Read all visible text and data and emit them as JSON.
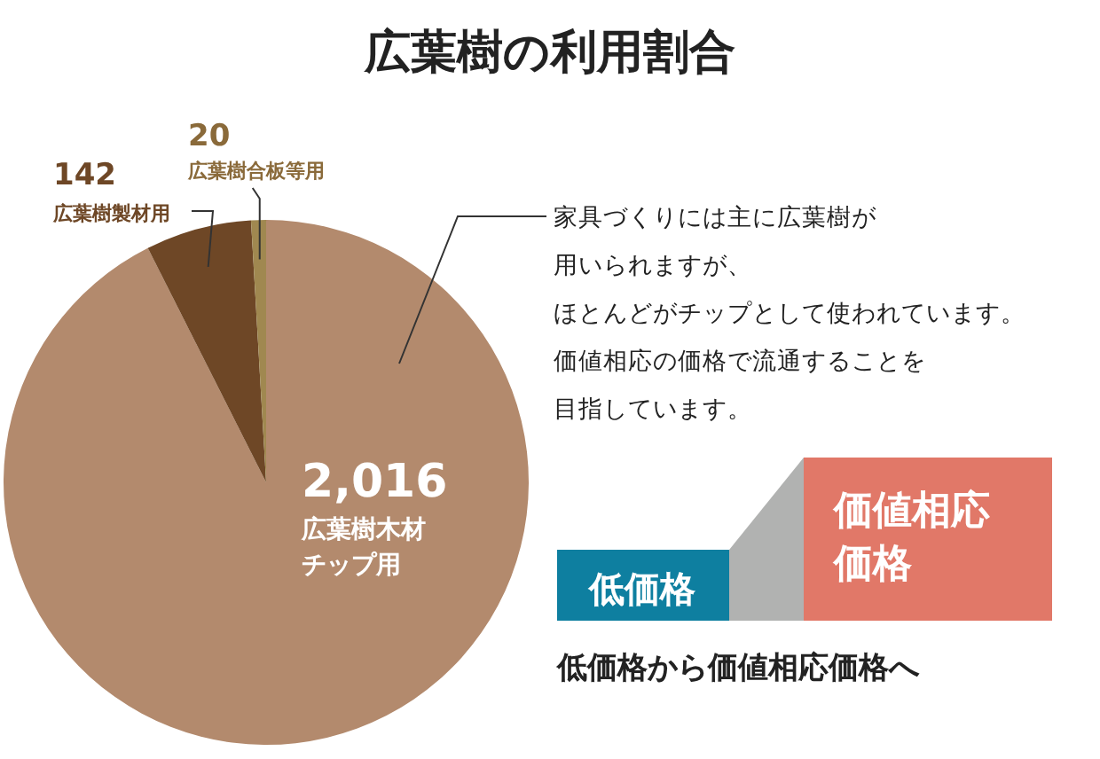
{
  "chart_data": {
    "type": "pie",
    "title": "広葉樹の利用割合",
    "categories": [
      "広葉樹木材チップ用",
      "広葉樹製材用",
      "広葉樹合板等用"
    ],
    "values": [
      2016,
      142,
      20
    ],
    "value_labels": [
      "2,016",
      "142",
      "20"
    ],
    "colors": [
      "#b38a6d",
      "#6e4726",
      "#a08850"
    ],
    "annotations": [
      "家具づくりには主に広葉樹が",
      "用いられますが、",
      "ほとんどがチップとして使われています。",
      "価値相応の価格で流通することを",
      "目指しています。",
      "低価格",
      "価値相応価格",
      "低価格から価値相応価格へ"
    ]
  }
}
